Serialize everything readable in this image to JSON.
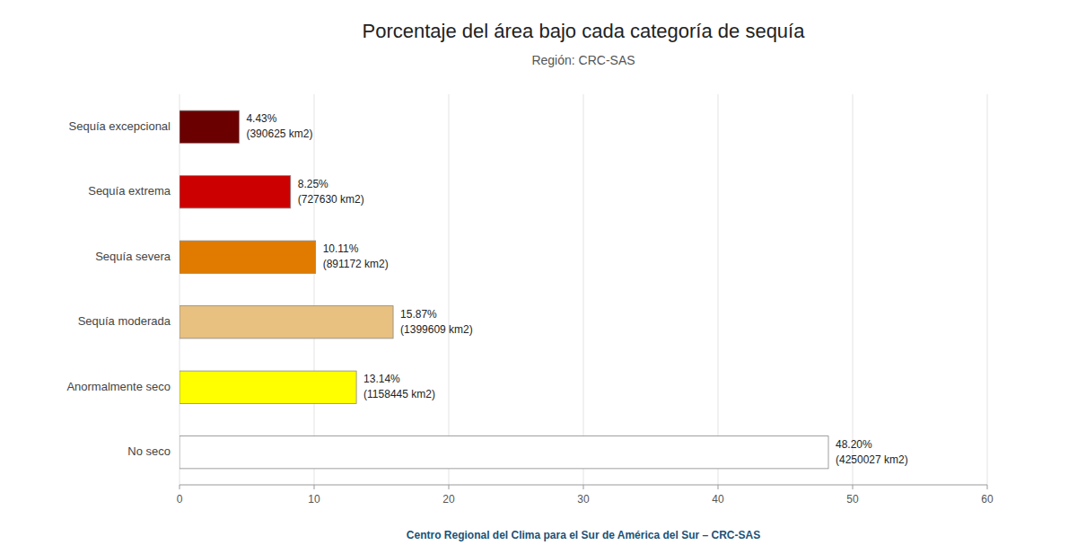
{
  "chart_data": {
    "type": "bar",
    "orientation": "horizontal",
    "title": "Porcentaje del área bajo cada categoría de sequía",
    "subtitle": "Región: CRC-SAS",
    "footer": "Centro Regional del Clima para el Sur de América del Sur – CRC-SAS",
    "categories": [
      "Sequía excepcional",
      "Sequía extrema",
      "Sequía severa",
      "Sequía moderada",
      "Anormalmente seco",
      "No seco"
    ],
    "values": [
      4.43,
      8.25,
      10.11,
      15.87,
      13.14,
      48.2
    ],
    "value_labels": [
      "4.43%",
      "8.25%",
      "10.11%",
      "15.87%",
      "13.14%",
      "48.20%"
    ],
    "area_labels": [
      "(390625 km2)",
      "(727630 km2)",
      "(891172 km2)",
      "(1399609 km2)",
      "(1158445 km2)",
      "(4250027 km2)"
    ],
    "colors": [
      "#6b0000",
      "#cc0000",
      "#e07b00",
      "#e8c080",
      "#ffff00",
      "#ffffff"
    ],
    "data_labels": true,
    "xlim": [
      0,
      60
    ],
    "xticks": [
      0,
      10,
      20,
      30,
      40,
      50,
      60
    ],
    "grid": true
  }
}
